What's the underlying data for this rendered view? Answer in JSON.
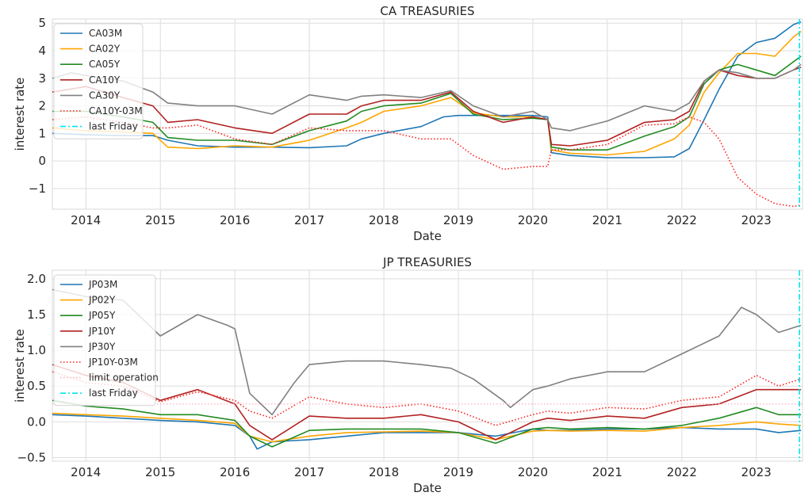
{
  "chart_data": [
    {
      "type": "line",
      "title": "CA TREASURIES",
      "xlabel": "Date",
      "ylabel": "interest rate",
      "ylim": [
        -1.75,
        5.15
      ],
      "xlim": [
        2013.55,
        2023.62
      ],
      "grid": true,
      "legend_position": "top-left",
      "yticks": [
        -1,
        0,
        1,
        2,
        3,
        4,
        5
      ],
      "ytick_labels": [
        "−1",
        "0",
        "1",
        "2",
        "3",
        "4",
        "5"
      ],
      "xticks": [
        2014,
        2015,
        2016,
        2017,
        2018,
        2019,
        2020,
        2021,
        2022,
        2023
      ],
      "xtick_labels": [
        "2014",
        "2015",
        "2016",
        "2017",
        "2018",
        "2019",
        "2020",
        "2021",
        "2022",
        "2023"
      ],
      "vline": {
        "name": "last Friday",
        "x": 2023.58,
        "color": "#00e5ee"
      },
      "series": [
        {
          "name": "CA03M",
          "color": "#1f77b4",
          "style": "solid",
          "x": [
            2013.55,
            2014.0,
            2014.5,
            2014.9,
            2015.1,
            2015.5,
            2016.0,
            2016.5,
            2017.0,
            2017.5,
            2017.7,
            2018.0,
            2018.5,
            2018.8,
            2019.0,
            2019.5,
            2020.0,
            2020.2,
            2020.25,
            2020.5,
            2021.0,
            2021.5,
            2021.9,
            2022.1,
            2022.3,
            2022.5,
            2022.75,
            2023.0,
            2023.25,
            2023.5,
            2023.6
          ],
          "y": [
            1.0,
            0.95,
            0.92,
            0.92,
            0.75,
            0.55,
            0.5,
            0.5,
            0.48,
            0.55,
            0.8,
            1.0,
            1.25,
            1.6,
            1.65,
            1.65,
            1.65,
            1.6,
            0.3,
            0.2,
            0.12,
            0.12,
            0.15,
            0.45,
            1.5,
            2.6,
            3.8,
            4.3,
            4.45,
            4.95,
            5.05
          ]
        },
        {
          "name": "CA02Y",
          "color": "#ffa500",
          "style": "solid",
          "x": [
            2013.55,
            2014.0,
            2014.5,
            2014.9,
            2015.1,
            2015.5,
            2016.0,
            2016.5,
            2017.0,
            2017.5,
            2017.7,
            2018.0,
            2018.5,
            2018.9,
            2019.2,
            2019.6,
            2020.0,
            2020.2,
            2020.25,
            2020.5,
            2021.0,
            2021.5,
            2021.9,
            2022.1,
            2022.3,
            2022.5,
            2022.75,
            2023.0,
            2023.25,
            2023.5,
            2023.6
          ],
          "y": [
            1.2,
            1.1,
            1.05,
            1.0,
            0.5,
            0.45,
            0.55,
            0.5,
            0.75,
            1.2,
            1.4,
            1.8,
            2.0,
            2.3,
            1.75,
            1.6,
            1.6,
            1.5,
            0.4,
            0.28,
            0.22,
            0.35,
            0.8,
            1.3,
            2.5,
            3.2,
            3.9,
            3.9,
            3.8,
            4.5,
            4.7
          ]
        },
        {
          "name": "CA05Y",
          "color": "#228b22",
          "style": "solid",
          "x": [
            2013.55,
            2014.0,
            2014.5,
            2014.9,
            2015.1,
            2015.5,
            2016.0,
            2016.5,
            2017.0,
            2017.5,
            2017.7,
            2018.0,
            2018.5,
            2018.9,
            2019.2,
            2019.6,
            2020.0,
            2020.2,
            2020.25,
            2020.5,
            2021.0,
            2021.5,
            2021.9,
            2022.1,
            2022.3,
            2022.5,
            2022.75,
            2023.0,
            2023.25,
            2023.5,
            2023.6
          ],
          "y": [
            1.8,
            1.8,
            1.6,
            1.4,
            0.85,
            0.75,
            0.75,
            0.6,
            1.1,
            1.45,
            1.8,
            2.0,
            2.1,
            2.45,
            1.7,
            1.5,
            1.55,
            1.5,
            0.5,
            0.4,
            0.4,
            0.9,
            1.25,
            1.6,
            2.8,
            3.3,
            3.5,
            3.3,
            3.1,
            3.6,
            3.8
          ]
        },
        {
          "name": "CA10Y",
          "color": "#b22222",
          "style": "solid",
          "x": [
            2013.55,
            2014.0,
            2014.5,
            2014.9,
            2015.1,
            2015.5,
            2016.0,
            2016.5,
            2017.0,
            2017.5,
            2017.7,
            2018.0,
            2018.5,
            2018.9,
            2019.2,
            2019.6,
            2020.0,
            2020.2,
            2020.25,
            2020.5,
            2021.0,
            2021.5,
            2021.9,
            2022.1,
            2022.3,
            2022.5,
            2022.75,
            2023.0,
            2023.25,
            2023.5,
            2023.6
          ],
          "y": [
            2.5,
            2.7,
            2.3,
            2.0,
            1.4,
            1.5,
            1.2,
            1.0,
            1.7,
            1.7,
            2.0,
            2.2,
            2.2,
            2.5,
            1.8,
            1.4,
            1.6,
            1.5,
            0.6,
            0.55,
            0.75,
            1.4,
            1.5,
            1.8,
            2.9,
            3.3,
            3.1,
            3.0,
            3.0,
            3.3,
            3.4
          ]
        },
        {
          "name": "CA30Y",
          "color": "#808080",
          "style": "solid",
          "x": [
            2013.55,
            2013.8,
            2014.0,
            2014.5,
            2014.9,
            2015.1,
            2015.5,
            2016.0,
            2016.5,
            2017.0,
            2017.5,
            2017.7,
            2018.0,
            2018.5,
            2018.9,
            2019.2,
            2019.6,
            2020.0,
            2020.2,
            2020.25,
            2020.5,
            2021.0,
            2021.5,
            2021.9,
            2022.1,
            2022.3,
            2022.5,
            2022.75,
            2023.0,
            2023.25,
            2023.5,
            2023.6
          ],
          "y": [
            3.0,
            3.2,
            3.1,
            2.9,
            2.5,
            2.1,
            2.0,
            2.0,
            1.7,
            2.4,
            2.2,
            2.35,
            2.4,
            2.3,
            2.55,
            2.0,
            1.6,
            1.8,
            1.5,
            1.2,
            1.1,
            1.45,
            2.0,
            1.8,
            2.1,
            2.9,
            3.3,
            3.2,
            3.0,
            3.0,
            3.3,
            3.5
          ]
        },
        {
          "name": "CA10Y-03M",
          "color": "#ff2020",
          "style": "dotted",
          "x": [
            2013.55,
            2014.0,
            2014.5,
            2014.9,
            2015.1,
            2015.5,
            2016.0,
            2016.5,
            2017.0,
            2017.5,
            2017.7,
            2018.0,
            2018.5,
            2018.9,
            2019.2,
            2019.6,
            2019.8,
            2020.0,
            2020.2,
            2020.25,
            2020.5,
            2021.0,
            2021.5,
            2021.9,
            2022.1,
            2022.3,
            2022.5,
            2022.75,
            2023.0,
            2023.25,
            2023.5,
            2023.6
          ],
          "y": [
            1.5,
            1.6,
            1.4,
            1.2,
            1.2,
            1.3,
            0.8,
            0.6,
            1.2,
            1.1,
            1.1,
            1.1,
            0.8,
            0.8,
            0.2,
            -0.3,
            -0.25,
            -0.2,
            -0.2,
            0.4,
            0.4,
            0.6,
            1.3,
            1.35,
            1.6,
            1.4,
            0.8,
            -0.6,
            -1.2,
            -1.55,
            -1.65,
            -1.6
          ]
        }
      ]
    },
    {
      "type": "line",
      "title": "JP TREASURIES",
      "xlabel": "Date",
      "ylabel": "interest rate",
      "ylim": [
        -0.55,
        2.12
      ],
      "xlim": [
        2013.55,
        2023.62
      ],
      "grid": true,
      "legend_position": "top-left",
      "yticks": [
        -0.5,
        0.0,
        0.5,
        1.0,
        1.5,
        2.0
      ],
      "ytick_labels": [
        "−0.5",
        "0.0",
        "0.5",
        "1.0",
        "1.5",
        "2.0"
      ],
      "xticks": [
        2014,
        2015,
        2016,
        2017,
        2018,
        2019,
        2020,
        2021,
        2022,
        2023
      ],
      "xtick_labels": [
        "2014",
        "2015",
        "2016",
        "2017",
        "2018",
        "2019",
        "2020",
        "2021",
        "2022",
        "2023"
      ],
      "hline": {
        "name": "limit operation",
        "y": 0.25,
        "color": "#ffb6c1"
      },
      "vline": {
        "name": "last Friday",
        "x": 2023.58,
        "color": "#00e5ee"
      },
      "series": [
        {
          "name": "JP03M",
          "color": "#1f77b4",
          "style": "solid",
          "x": [
            2013.55,
            2014.0,
            2014.5,
            2015.0,
            2015.5,
            2016.0,
            2016.2,
            2016.3,
            2016.5,
            2017.0,
            2017.5,
            2018.0,
            2018.5,
            2019.0,
            2019.5,
            2020.0,
            2020.2,
            2020.5,
            2021.0,
            2021.5,
            2022.0,
            2022.5,
            2023.0,
            2023.3,
            2023.6
          ],
          "y": [
            0.1,
            0.08,
            0.05,
            0.02,
            0.0,
            -0.05,
            -0.2,
            -0.38,
            -0.28,
            -0.25,
            -0.2,
            -0.15,
            -0.15,
            -0.15,
            -0.2,
            -0.1,
            -0.12,
            -0.12,
            -0.1,
            -0.1,
            -0.08,
            -0.1,
            -0.1,
            -0.15,
            -0.12
          ]
        },
        {
          "name": "JP02Y",
          "color": "#ffa500",
          "style": "solid",
          "x": [
            2013.55,
            2014.0,
            2014.5,
            2015.0,
            2015.5,
            2016.0,
            2016.2,
            2016.5,
            2017.0,
            2017.5,
            2018.0,
            2018.5,
            2019.0,
            2019.5,
            2020.0,
            2020.2,
            2020.5,
            2021.0,
            2021.5,
            2022.0,
            2022.5,
            2023.0,
            2023.3,
            2023.6
          ],
          "y": [
            0.12,
            0.1,
            0.08,
            0.05,
            0.02,
            -0.02,
            -0.2,
            -0.28,
            -0.2,
            -0.15,
            -0.14,
            -0.13,
            -0.15,
            -0.25,
            -0.13,
            -0.12,
            -0.13,
            -0.12,
            -0.13,
            -0.08,
            -0.05,
            0.0,
            -0.03,
            -0.05
          ]
        },
        {
          "name": "JP05Y",
          "color": "#228b22",
          "style": "solid",
          "x": [
            2013.55,
            2014.0,
            2014.5,
            2015.0,
            2015.5,
            2016.0,
            2016.2,
            2016.5,
            2017.0,
            2017.5,
            2018.0,
            2018.5,
            2019.0,
            2019.5,
            2020.0,
            2020.2,
            2020.5,
            2021.0,
            2021.5,
            2022.0,
            2022.5,
            2023.0,
            2023.3,
            2023.6
          ],
          "y": [
            0.3,
            0.22,
            0.18,
            0.1,
            0.1,
            0.02,
            -0.2,
            -0.35,
            -0.12,
            -0.1,
            -0.1,
            -0.1,
            -0.15,
            -0.3,
            -0.1,
            -0.08,
            -0.1,
            -0.08,
            -0.1,
            -0.05,
            0.05,
            0.2,
            0.1,
            0.1
          ]
        },
        {
          "name": "JP10Y",
          "color": "#b22222",
          "style": "solid",
          "x": [
            2013.55,
            2014.0,
            2014.5,
            2015.0,
            2015.5,
            2016.0,
            2016.2,
            2016.5,
            2017.0,
            2017.5,
            2018.0,
            2018.5,
            2019.0,
            2019.5,
            2020.0,
            2020.2,
            2020.5,
            2021.0,
            2021.5,
            2022.0,
            2022.5,
            2023.0,
            2023.3,
            2023.6
          ],
          "y": [
            0.8,
            0.65,
            0.55,
            0.3,
            0.45,
            0.25,
            -0.05,
            -0.25,
            0.08,
            0.05,
            0.05,
            0.1,
            0.0,
            -0.25,
            0.0,
            0.05,
            0.02,
            0.08,
            0.05,
            0.2,
            0.25,
            0.45,
            0.45,
            0.45
          ]
        },
        {
          "name": "JP30Y",
          "color": "#808080",
          "style": "solid",
          "x": [
            2013.55,
            2014.0,
            2014.5,
            2014.9,
            2015.0,
            2015.5,
            2015.9,
            2016.0,
            2016.2,
            2016.5,
            2016.8,
            2017.0,
            2017.5,
            2018.0,
            2018.5,
            2018.9,
            2019.2,
            2019.6,
            2019.7,
            2020.0,
            2020.2,
            2020.5,
            2021.0,
            2021.5,
            2022.0,
            2022.5,
            2022.8,
            2023.0,
            2023.3,
            2023.6
          ],
          "y": [
            1.85,
            1.75,
            1.7,
            1.3,
            1.2,
            1.5,
            1.35,
            1.3,
            0.4,
            0.1,
            0.55,
            0.8,
            0.85,
            0.85,
            0.8,
            0.75,
            0.6,
            0.3,
            0.2,
            0.45,
            0.5,
            0.6,
            0.7,
            0.7,
            0.95,
            1.2,
            1.6,
            1.5,
            1.25,
            1.35
          ]
        },
        {
          "name": "JP10Y-03M",
          "color": "#ff2020",
          "style": "dotted",
          "x": [
            2013.55,
            2014.0,
            2014.5,
            2015.0,
            2015.5,
            2016.0,
            2016.2,
            2016.5,
            2017.0,
            2017.5,
            2018.0,
            2018.5,
            2019.0,
            2019.5,
            2020.0,
            2020.2,
            2020.5,
            2021.0,
            2021.5,
            2022.0,
            2022.5,
            2023.0,
            2023.3,
            2023.6
          ],
          "y": [
            0.7,
            0.55,
            0.5,
            0.28,
            0.42,
            0.3,
            0.15,
            0.05,
            0.35,
            0.25,
            0.2,
            0.25,
            0.15,
            -0.05,
            0.1,
            0.15,
            0.12,
            0.2,
            0.18,
            0.3,
            0.35,
            0.65,
            0.5,
            0.6
          ]
        }
      ]
    }
  ]
}
